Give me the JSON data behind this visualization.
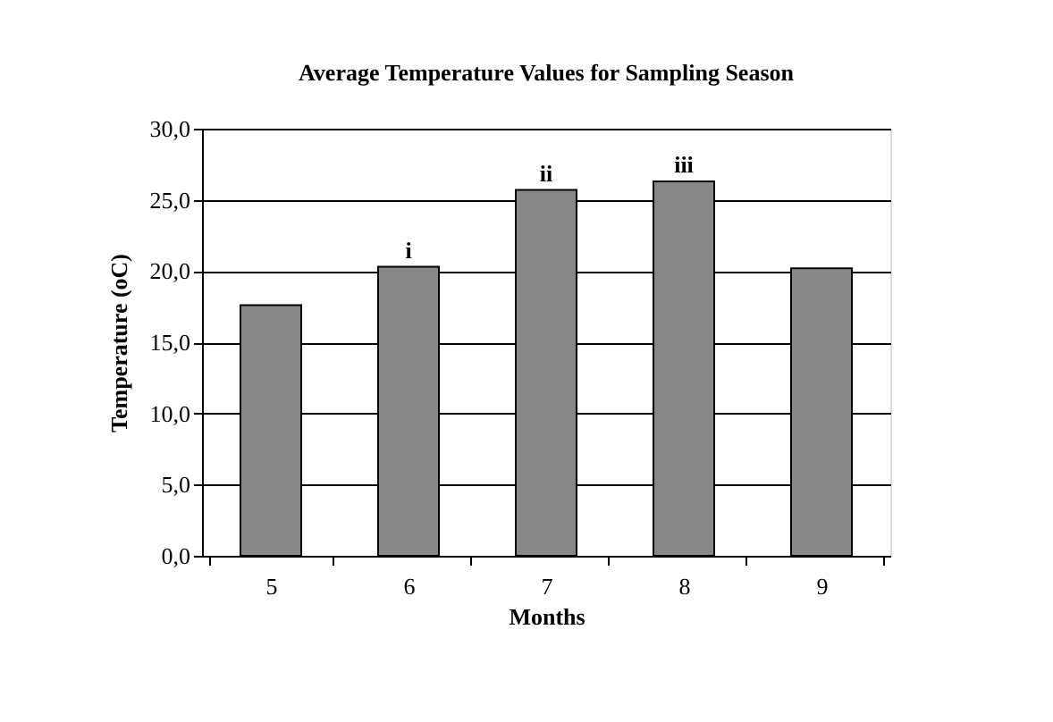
{
  "chart_data": {
    "type": "bar",
    "title": "Average Temperature Values for Sampling Season",
    "xlabel": "Months",
    "ylabel": "Temperature (oC)",
    "categories": [
      "5",
      "6",
      "7",
      "8",
      "9"
    ],
    "values": [
      17.6,
      20.3,
      25.7,
      26.3,
      20.2
    ],
    "color": "#878787",
    "ylim": [
      0,
      30
    ],
    "yticks": [
      {
        "value": 0,
        "label": "0,0"
      },
      {
        "value": 5,
        "label": "5,0"
      },
      {
        "value": 10,
        "label": "10,0"
      },
      {
        "value": 15,
        "label": "15,0"
      },
      {
        "value": 20,
        "label": "20,0"
      },
      {
        "value": 25,
        "label": "25,0"
      },
      {
        "value": 30,
        "label": "30,0"
      }
    ],
    "grid": "y",
    "annotations": [
      {
        "text": "i",
        "x": "6",
        "y": 20.3
      },
      {
        "text": "ii",
        "x": "7",
        "y": 25.7
      },
      {
        "text": "iii",
        "x": "8",
        "y": 26.3
      }
    ]
  }
}
